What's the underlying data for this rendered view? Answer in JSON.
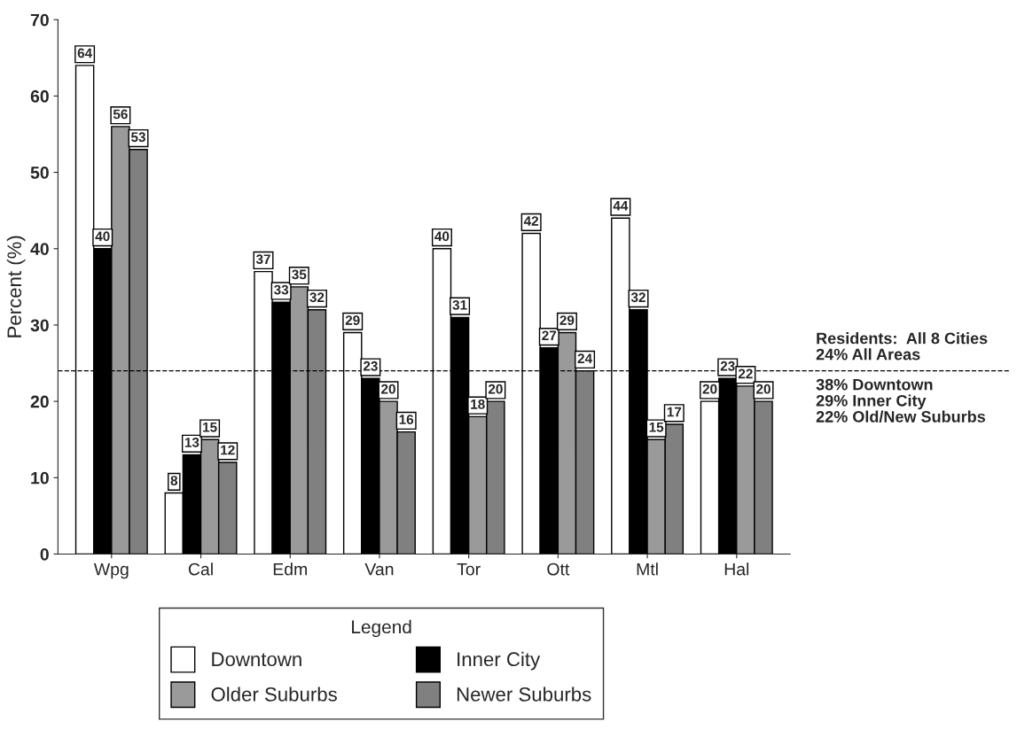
{
  "chart_data": {
    "type": "bar",
    "ylabel": "Percent (%)",
    "legend_title": "Legend",
    "categories": [
      "Wpg",
      "Cal",
      "Edm",
      "Van",
      "Tor",
      "Ott",
      "Mtl",
      "Hal"
    ],
    "series": [
      {
        "name": "Downtown",
        "color": "#ffffff",
        "values": [
          64,
          8,
          37,
          29,
          40,
          42,
          44,
          20
        ]
      },
      {
        "name": "Inner City",
        "color": "#000000",
        "values": [
          40,
          13,
          33,
          23,
          31,
          27,
          32,
          23
        ]
      },
      {
        "name": "Older Suburbs",
        "color": "#9a9a9a",
        "values": [
          56,
          15,
          35,
          20,
          18,
          29,
          15,
          22
        ]
      },
      {
        "name": "Newer Suburbs",
        "color": "#808080",
        "values": [
          53,
          12,
          32,
          16,
          20,
          24,
          17,
          20
        ]
      }
    ],
    "ylim": [
      0,
      70
    ],
    "yticks": [
      0,
      10,
      20,
      30,
      40,
      50,
      60,
      70
    ],
    "ref_lines": [
      {
        "axis": "y",
        "value": 24,
        "line_style": "dashed"
      }
    ],
    "annotations": [
      "Residents:  All 8 Cities\n24% All Areas",
      "38% Downtown\n29% Inner City\n22% Old/New Suburbs"
    ],
    "data_labels": true,
    "grid": false,
    "legend": "bottom"
  }
}
